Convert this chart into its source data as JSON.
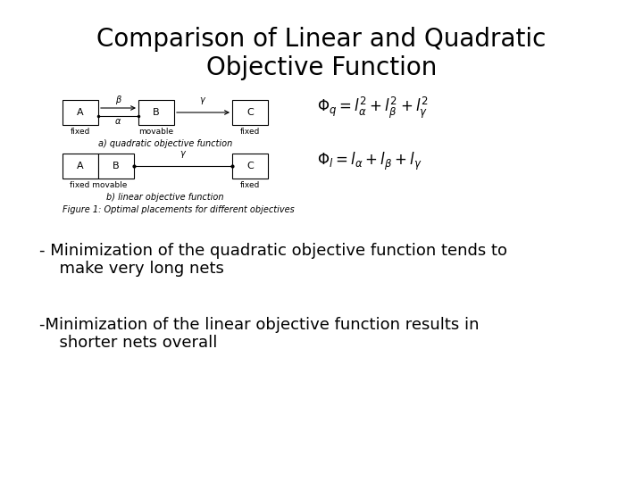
{
  "title": "Comparison of Linear and Quadratic\nObjective Function",
  "title_fontsize": 20,
  "background_color": "#ffffff",
  "bullet1_line1": "- Minimization of the quadratic objective function tends to",
  "bullet1_line2": "  make very long nets",
  "bullet2_line1": "-Minimization of the linear objective function results in",
  "bullet2_line2": "  shorter nets overall",
  "text_fontsize": 13,
  "fig_caption": "Figure 1: Optimal placements for different objectives",
  "label_a": "a) quadratic objective function",
  "label_b": "b) linear objective function",
  "diagram_fontsize": 8,
  "formula_fontsize": 12
}
